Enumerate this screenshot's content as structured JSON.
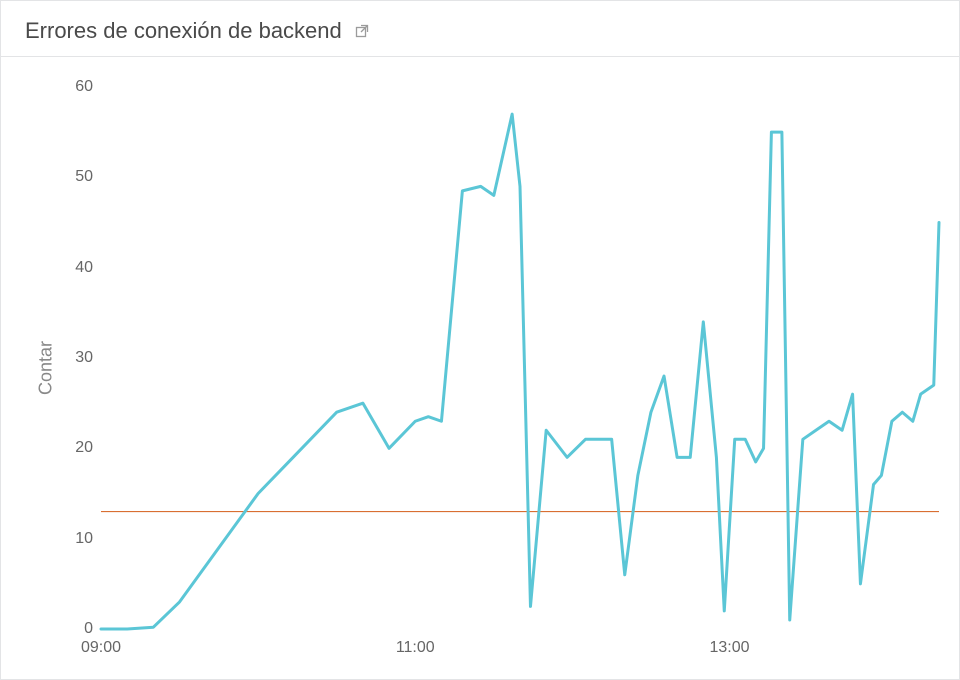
{
  "header": {
    "title": "Errores de conexión de backend"
  },
  "chart": {
    "type": "line",
    "y_axis_label": "Contar",
    "line_color": "#5bc6d6",
    "line_width": 3,
    "threshold_color": "#d96f32",
    "threshold_width": 1.2,
    "threshold_value": 13,
    "background_color": "#ffffff",
    "axis_text_color": "#666666",
    "y_label_color": "#888888",
    "title_color": "#4a4a4a",
    "title_fontsize": 22,
    "tick_fontsize": 16,
    "y_label_fontsize": 18,
    "ylim": [
      0,
      60
    ],
    "y_ticks": [
      0,
      10,
      20,
      30,
      40,
      50,
      60
    ],
    "x_range_minutes": [
      540,
      860
    ],
    "x_ticks": [
      {
        "minutes": 540,
        "label": "09:00"
      },
      {
        "minutes": 660,
        "label": "11:00"
      },
      {
        "minutes": 780,
        "label": "13:00"
      }
    ],
    "data": [
      {
        "t": 540,
        "v": 0
      },
      {
        "t": 550,
        "v": 0
      },
      {
        "t": 560,
        "v": 0.2
      },
      {
        "t": 570,
        "v": 3
      },
      {
        "t": 580,
        "v": 7
      },
      {
        "t": 590,
        "v": 11
      },
      {
        "t": 600,
        "v": 15
      },
      {
        "t": 610,
        "v": 18
      },
      {
        "t": 620,
        "v": 21
      },
      {
        "t": 630,
        "v": 24
      },
      {
        "t": 640,
        "v": 25
      },
      {
        "t": 650,
        "v": 20
      },
      {
        "t": 660,
        "v": 23
      },
      {
        "t": 665,
        "v": 23.5
      },
      {
        "t": 670,
        "v": 23
      },
      {
        "t": 678,
        "v": 48.5
      },
      {
        "t": 685,
        "v": 49
      },
      {
        "t": 690,
        "v": 48
      },
      {
        "t": 697,
        "v": 57
      },
      {
        "t": 700,
        "v": 49
      },
      {
        "t": 704,
        "v": 2.5
      },
      {
        "t": 710,
        "v": 22
      },
      {
        "t": 718,
        "v": 19
      },
      {
        "t": 725,
        "v": 21
      },
      {
        "t": 730,
        "v": 21
      },
      {
        "t": 735,
        "v": 21
      },
      {
        "t": 740,
        "v": 6
      },
      {
        "t": 745,
        "v": 17
      },
      {
        "t": 750,
        "v": 24
      },
      {
        "t": 755,
        "v": 28
      },
      {
        "t": 760,
        "v": 19
      },
      {
        "t": 765,
        "v": 19
      },
      {
        "t": 770,
        "v": 34
      },
      {
        "t": 775,
        "v": 19
      },
      {
        "t": 778,
        "v": 2
      },
      {
        "t": 782,
        "v": 21
      },
      {
        "t": 786,
        "v": 21
      },
      {
        "t": 790,
        "v": 18.5
      },
      {
        "t": 793,
        "v": 20
      },
      {
        "t": 796,
        "v": 55
      },
      {
        "t": 800,
        "v": 55
      },
      {
        "t": 803,
        "v": 1
      },
      {
        "t": 808,
        "v": 21
      },
      {
        "t": 813,
        "v": 22
      },
      {
        "t": 818,
        "v": 23
      },
      {
        "t": 823,
        "v": 22
      },
      {
        "t": 827,
        "v": 26
      },
      {
        "t": 830,
        "v": 5
      },
      {
        "t": 835,
        "v": 16
      },
      {
        "t": 838,
        "v": 17
      },
      {
        "t": 842,
        "v": 23
      },
      {
        "t": 846,
        "v": 24
      },
      {
        "t": 850,
        "v": 23
      },
      {
        "t": 853,
        "v": 26
      },
      {
        "t": 858,
        "v": 27
      },
      {
        "t": 860,
        "v": 45
      }
    ]
  }
}
